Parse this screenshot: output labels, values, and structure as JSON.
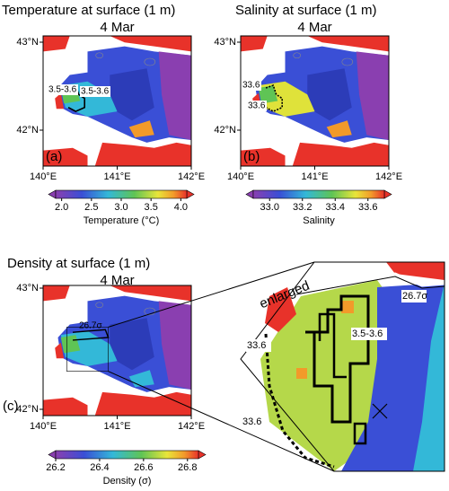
{
  "panels": [
    {
      "title": "Temperature at surface (1 m)",
      "date": "4 Mar",
      "label": "(a)",
      "annotations": [
        "3.5-3.6",
        "3.5-3.6"
      ],
      "colorbar": {
        "label": "Temperature (°C)",
        "lim": [
          1.9,
          4.1
        ],
        "ticks": [
          {
            "value": 2,
            "label": "2.0"
          },
          {
            "value": 2.5,
            "label": "2.5"
          },
          {
            "value": 3,
            "label": "3.0"
          },
          {
            "value": 3.5,
            "label": "3.5"
          },
          {
            "value": 4,
            "label": "4.0"
          }
        ]
      }
    },
    {
      "title": "Salinity at surface (1 m)",
      "date": "4 Mar",
      "label": "(b)",
      "annotations": [
        "33.6",
        "33.6"
      ],
      "colorbar": {
        "label": "Salinity",
        "lim": [
          32.9,
          33.7
        ],
        "ticks": [
          {
            "value": 33,
            "label": "33.0"
          },
          33.2,
          33.4,
          33.6
        ]
      }
    },
    {
      "title": "Density at surface (1 m)",
      "date": "4 Mar",
      "label": "(c)",
      "annotations": [
        "26.7σ"
      ],
      "colorbar": {
        "label": "Density (σ)",
        "lim": [
          26.2,
          26.85
        ],
        "ticks": [
          26.2,
          26.4,
          26.6,
          26.8
        ]
      }
    }
  ],
  "lon_ticks": [
    {
      "value": 140,
      "label": "140°E"
    },
    {
      "value": 141,
      "label": "141°E"
    },
    {
      "value": 142,
      "label": "142°E"
    }
  ],
  "lat_ticks": [
    {
      "value": 42,
      "label": "42°N"
    },
    {
      "value": 43,
      "label": "43°N"
    }
  ],
  "inset": {
    "label": "enlarged",
    "annotations": [
      "26.7σ",
      "33.6",
      "3.5-3.6",
      "33.6"
    ]
  }
}
